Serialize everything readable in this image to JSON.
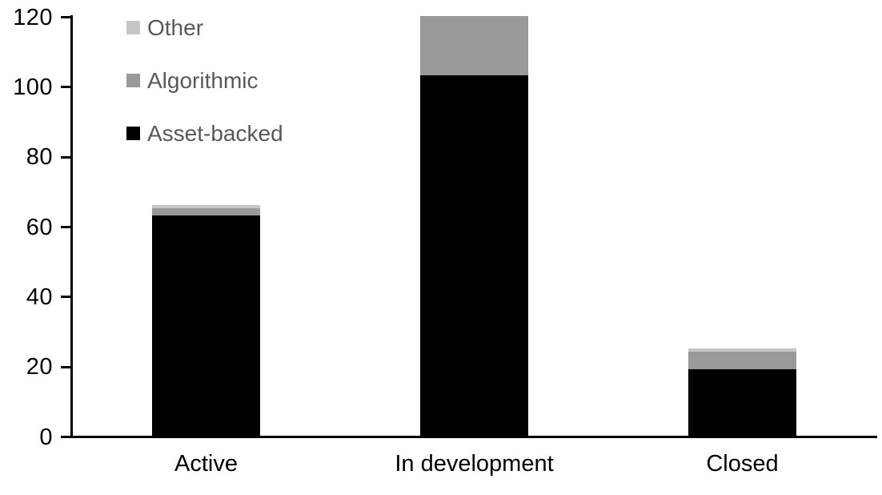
{
  "chart_data": {
    "type": "bar",
    "stacked": true,
    "title": "",
    "xlabel": "",
    "ylabel": "",
    "categories": [
      "Active",
      "In development",
      "Closed"
    ],
    "series": [
      {
        "name": "Asset-backed",
        "color": "#000000",
        "values": [
          63,
          103,
          19
        ]
      },
      {
        "name": "Algorithmic",
        "color": "#999999",
        "values": [
          2,
          17,
          5
        ]
      },
      {
        "name": "Other",
        "color": "#C6C6C6",
        "values": [
          1,
          0,
          1
        ]
      }
    ],
    "stack_totals": [
      66,
      120,
      25
    ],
    "ylim": [
      0,
      120
    ],
    "yticks": [
      0,
      20,
      40,
      60,
      80,
      100,
      120
    ],
    "grid": false,
    "axis_color": "#000000",
    "background_color": "#FFFFFF",
    "legend": {
      "position": "top-left",
      "order_top_to_bottom": [
        "Other",
        "Algorithmic",
        "Asset-backed"
      ],
      "text_color": "#595959"
    }
  }
}
